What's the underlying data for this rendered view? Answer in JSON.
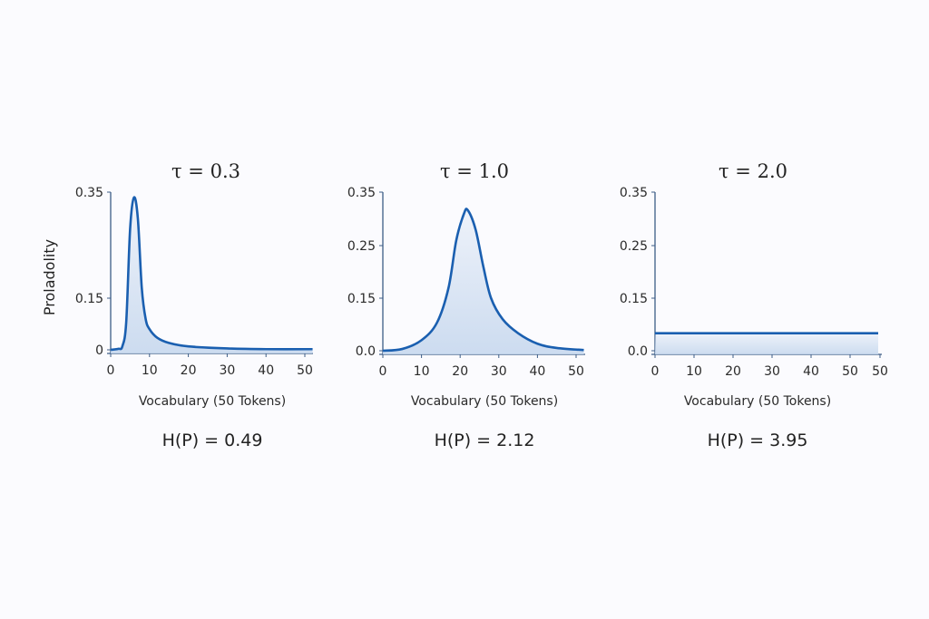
{
  "colors": {
    "line": "#1a5fb0",
    "fill": "#c7d8ee",
    "axis": "#3c5d86"
  },
  "chart_data": [
    {
      "type": "area",
      "title": "τ = 0.3",
      "xlabel": "Vocabulary (50 Tokens)",
      "ylabel": "Proladolity",
      "entropy_label": "H(P) = 0.49",
      "xlim": [
        0,
        52
      ],
      "ylim": [
        0,
        0.35
      ],
      "x_ticks": [
        "0",
        "10",
        "20",
        "30",
        "40",
        "50"
      ],
      "y_ticks": [
        "0",
        "0.15",
        "0.35"
      ],
      "x": [
        0,
        2,
        3,
        4,
        5,
        6,
        7,
        8,
        9,
        10,
        12,
        15,
        20,
        30,
        40,
        52
      ],
      "y": [
        0,
        0.003,
        0.01,
        0.08,
        0.28,
        0.34,
        0.3,
        0.17,
        0.09,
        0.06,
        0.035,
        0.02,
        0.01,
        0.004,
        0.002,
        0.002
      ]
    },
    {
      "type": "area",
      "title": "τ = 1.0",
      "xlabel": "Vocabulary (50 Tokens)",
      "ylabel": "",
      "entropy_label": "H(P) = 2.12",
      "xlim": [
        0,
        52
      ],
      "ylim": [
        0,
        0.35
      ],
      "x_ticks": [
        "0",
        "10",
        "20",
        "30",
        "40",
        "50"
      ],
      "y_ticks": [
        "0.0",
        "0.15",
        "0.25",
        "0.35"
      ],
      "x": [
        0,
        5,
        10,
        14,
        17,
        19,
        21,
        22,
        24,
        26,
        28,
        31,
        35,
        40,
        45,
        52
      ],
      "y": [
        0,
        0.005,
        0.03,
        0.08,
        0.17,
        0.26,
        0.31,
        0.316,
        0.28,
        0.21,
        0.15,
        0.09,
        0.05,
        0.02,
        0.008,
        0.002
      ]
    },
    {
      "type": "area",
      "title": "τ = 2.0",
      "xlabel": "Vocabulary (50 Tokens)",
      "ylabel": "",
      "entropy_label": "H(P) = 3.95",
      "xlim": [
        0,
        57
      ],
      "ylim": [
        0,
        0.35
      ],
      "x_ticks": [
        "0",
        "10",
        "20",
        "30",
        "40",
        "50",
        "50"
      ],
      "y_ticks": [
        "0.0",
        "0.15",
        "0.25",
        "0.35"
      ],
      "x": [
        0,
        57
      ],
      "y": [
        0.05,
        0.05
      ]
    }
  ]
}
